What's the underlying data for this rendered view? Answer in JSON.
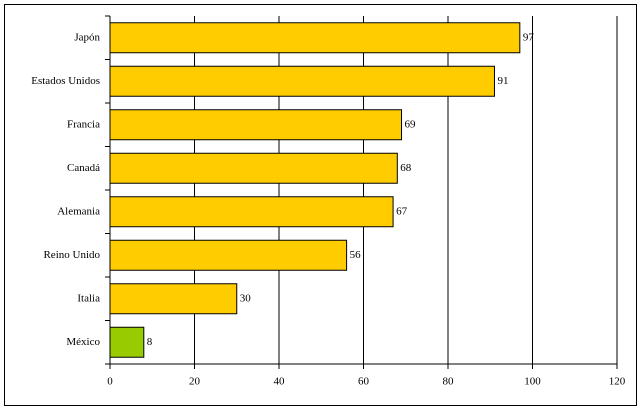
{
  "chart_data": {
    "type": "hbar",
    "categories": [
      "Japón",
      "Estados Unidos",
      "Francia",
      "Canadá",
      "Alemania",
      "Reino Unido",
      "Italia",
      "México"
    ],
    "values": [
      97,
      91,
      69,
      68,
      67,
      56,
      30,
      8
    ],
    "colors": [
      "#ffcc00",
      "#ffcc00",
      "#ffcc00",
      "#ffcc00",
      "#ffcc00",
      "#ffcc00",
      "#ffcc00",
      "#99cc00"
    ],
    "xlim": [
      0,
      120
    ],
    "xticks": [
      0,
      20,
      40,
      60,
      80,
      100,
      120
    ],
    "grid": true
  }
}
